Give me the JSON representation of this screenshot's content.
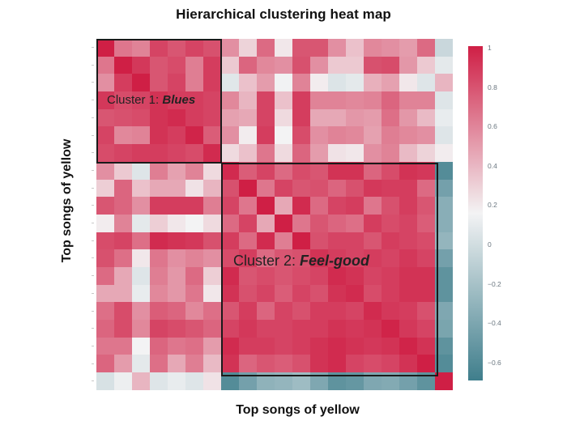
{
  "chart_data": {
    "type": "heatmap",
    "title": "Hierarchical clustering heat map",
    "xlabel": "Top songs of yellow",
    "ylabel": "Top songs of yellow",
    "rows": 20,
    "cols": 20,
    "colorbar": {
      "min": -0.7,
      "max": 1.0,
      "ticks": [
        1,
        0.8,
        0.6,
        0.4,
        0.2,
        0,
        -0.2,
        -0.4,
        -0.6
      ],
      "tick_labels": [
        "1",
        "0.8",
        "0.6",
        "0.4",
        "0.2",
        "0",
        "−0.2",
        "−0.4",
        "−0.6"
      ],
      "colors": {
        "low": "#3f7e8c",
        "mid": "#f3f3f4",
        "high": "#cf1f45"
      },
      "mid_value": 0.15
    },
    "annotations": [
      {
        "label": "Cluster 1: ",
        "emphasis": "Blues",
        "rows": [
          0,
          6
        ],
        "cols": [
          0,
          6
        ]
      },
      {
        "label": "Cluster 2: ",
        "emphasis": "Feel-good",
        "rows": [
          7,
          18
        ],
        "cols": [
          7,
          18
        ]
      }
    ],
    "values": [
      [
        1.0,
        0.65,
        0.6,
        0.85,
        0.78,
        0.85,
        0.8,
        0.55,
        0.28,
        0.7,
        0.2,
        0.78,
        0.78,
        0.55,
        0.35,
        0.58,
        0.55,
        0.5,
        0.7,
        -0.05
      ],
      [
        0.65,
        1.0,
        0.9,
        0.78,
        0.82,
        0.62,
        0.88,
        0.32,
        0.72,
        0.58,
        0.55,
        0.8,
        0.55,
        0.32,
        0.32,
        0.8,
        0.82,
        0.52,
        0.32,
        0.08
      ],
      [
        0.55,
        0.88,
        1.0,
        0.78,
        0.85,
        0.62,
        0.88,
        0.06,
        0.35,
        0.5,
        0.14,
        0.6,
        0.18,
        0.04,
        0.08,
        0.42,
        0.48,
        0.2,
        0.05,
        0.4
      ],
      [
        0.9,
        0.82,
        0.85,
        0.92,
        0.88,
        0.88,
        0.85,
        0.58,
        0.4,
        0.85,
        0.35,
        0.88,
        0.6,
        0.6,
        0.58,
        0.6,
        0.72,
        0.6,
        0.6,
        0.05
      ],
      [
        0.78,
        0.8,
        0.82,
        0.92,
        0.95,
        0.88,
        0.85,
        0.48,
        0.45,
        0.85,
        0.25,
        0.88,
        0.45,
        0.45,
        0.52,
        0.5,
        0.68,
        0.52,
        0.38,
        0.1
      ],
      [
        0.85,
        0.58,
        0.6,
        0.92,
        0.88,
        0.98,
        0.75,
        0.55,
        0.18,
        0.88,
        0.15,
        0.82,
        0.55,
        0.6,
        0.58,
        0.48,
        0.62,
        0.58,
        0.55,
        0.05
      ],
      [
        0.82,
        0.85,
        0.88,
        0.88,
        0.85,
        0.82,
        0.95,
        0.25,
        0.35,
        0.65,
        0.25,
        0.72,
        0.5,
        0.22,
        0.2,
        0.55,
        0.6,
        0.38,
        0.28,
        0.18
      ],
      [
        0.55,
        0.32,
        0.05,
        0.62,
        0.48,
        0.6,
        0.25,
        0.95,
        0.75,
        0.85,
        0.7,
        0.82,
        0.78,
        0.92,
        0.92,
        0.72,
        0.82,
        0.92,
        0.9,
        -0.6
      ],
      [
        0.3,
        0.72,
        0.35,
        0.45,
        0.45,
        0.22,
        0.4,
        0.8,
        1.0,
        0.65,
        0.85,
        0.78,
        0.8,
        0.72,
        0.8,
        0.9,
        0.88,
        0.88,
        0.7,
        -0.45
      ],
      [
        0.78,
        0.72,
        0.55,
        0.88,
        0.88,
        0.88,
        0.62,
        0.85,
        0.65,
        1.0,
        0.45,
        0.95,
        0.7,
        0.85,
        0.88,
        0.65,
        0.8,
        0.88,
        0.78,
        -0.35
      ],
      [
        0.18,
        0.6,
        0.08,
        0.3,
        0.2,
        0.15,
        0.25,
        0.7,
        0.85,
        0.45,
        1.0,
        0.65,
        0.78,
        0.72,
        0.68,
        0.88,
        0.82,
        0.85,
        0.75,
        -0.35
      ],
      [
        0.82,
        0.85,
        0.68,
        0.95,
        0.92,
        0.9,
        0.8,
        0.88,
        0.7,
        0.95,
        0.62,
        1.0,
        0.8,
        0.85,
        0.85,
        0.78,
        0.88,
        0.85,
        0.82,
        -0.3
      ],
      [
        0.8,
        0.68,
        0.2,
        0.65,
        0.55,
        0.6,
        0.55,
        0.82,
        0.88,
        0.7,
        0.78,
        0.8,
        0.92,
        0.88,
        0.85,
        0.88,
        0.85,
        0.9,
        0.85,
        -0.45
      ],
      [
        0.7,
        0.45,
        0.05,
        0.62,
        0.52,
        0.7,
        0.3,
        0.95,
        0.78,
        0.82,
        0.78,
        0.82,
        0.85,
        0.95,
        0.92,
        0.85,
        0.88,
        0.92,
        0.92,
        -0.55
      ],
      [
        0.45,
        0.45,
        0.1,
        0.58,
        0.52,
        0.65,
        0.2,
        0.92,
        0.8,
        0.85,
        0.75,
        0.85,
        0.8,
        0.92,
        0.95,
        0.82,
        0.88,
        0.92,
        0.92,
        -0.55
      ],
      [
        0.68,
        0.82,
        0.55,
        0.75,
        0.72,
        0.58,
        0.68,
        0.78,
        0.88,
        0.72,
        0.85,
        0.8,
        0.88,
        0.88,
        0.85,
        0.95,
        0.9,
        0.88,
        0.8,
        -0.4
      ],
      [
        0.72,
        0.82,
        0.58,
        0.85,
        0.82,
        0.78,
        0.72,
        0.85,
        0.9,
        0.85,
        0.85,
        0.88,
        0.88,
        0.92,
        0.9,
        0.92,
        0.98,
        0.9,
        0.85,
        -0.42
      ],
      [
        0.65,
        0.65,
        0.15,
        0.72,
        0.65,
        0.68,
        0.5,
        0.95,
        0.88,
        0.88,
        0.85,
        0.88,
        0.92,
        0.95,
        0.92,
        0.9,
        0.92,
        0.98,
        0.92,
        -0.55
      ],
      [
        0.72,
        0.5,
        0.08,
        0.68,
        0.45,
        0.62,
        0.38,
        0.92,
        0.72,
        0.78,
        0.75,
        0.8,
        0.92,
        0.95,
        0.85,
        0.82,
        0.85,
        0.92,
        1.0,
        -0.6
      ],
      [
        0.02,
        0.12,
        0.4,
        0.05,
        0.1,
        0.05,
        0.22,
        -0.6,
        -0.45,
        -0.32,
        -0.3,
        -0.25,
        -0.4,
        -0.55,
        -0.52,
        -0.4,
        -0.38,
        -0.45,
        -0.55,
        1.0
      ]
    ]
  }
}
